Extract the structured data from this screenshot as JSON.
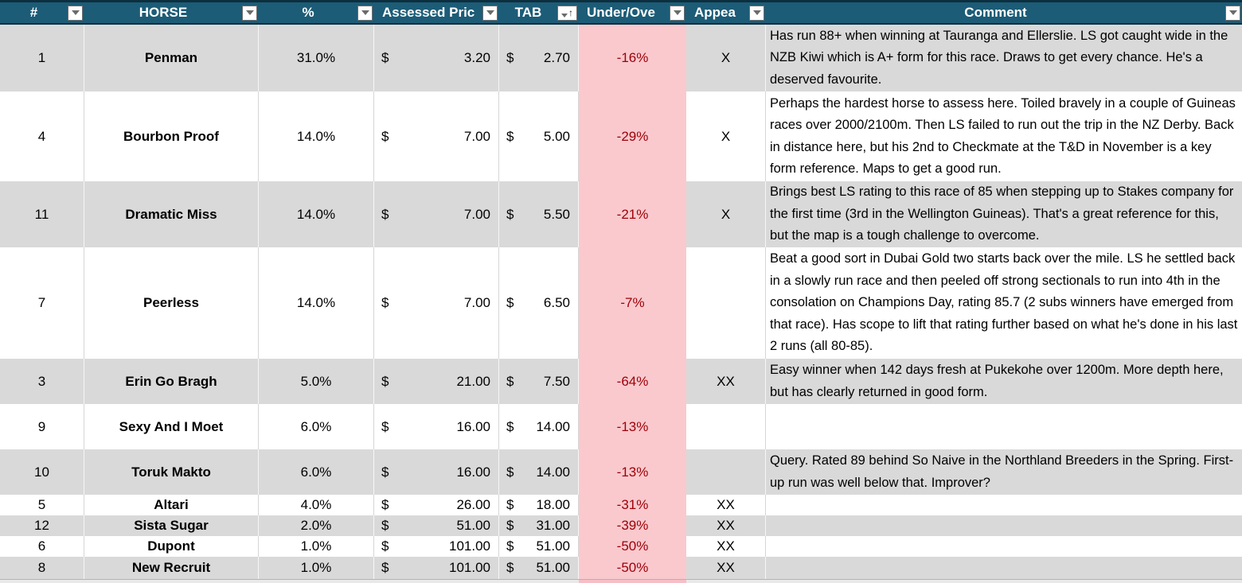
{
  "colors": {
    "header_bg": "#1C5C77",
    "header_border": "#0D2F3F",
    "alt_row_bg": "#D9D9D9",
    "under_over_fill": "#F9C9CE",
    "under_over_text": "#9C0006"
  },
  "icons": {
    "filter_dropdown": "filter-dropdown-triangle",
    "tab_sort": "sort-ascending-arrow",
    "sort_ascending_glyph": "↑"
  },
  "currency_symbol": "$",
  "table": {
    "columns": [
      {
        "key": "num",
        "label": "#"
      },
      {
        "key": "horse",
        "label": "HORSE"
      },
      {
        "key": "pct",
        "label": "%"
      },
      {
        "key": "assessed",
        "label": "Assessed Pric"
      },
      {
        "key": "tab",
        "label": "TAB",
        "sorted": "ascending"
      },
      {
        "key": "underover",
        "label": "Under/Ove"
      },
      {
        "key": "appeal",
        "label": "Appea"
      },
      {
        "key": "comment",
        "label": "Comment"
      }
    ],
    "rows": [
      {
        "num": "1",
        "horse": "Penman",
        "pct": "31.0%",
        "assessed": "3.20",
        "tab": "2.70",
        "underover": "-16%",
        "appeal": "X",
        "comment": "Has run 88+ when winning at Tauranga and Ellerslie. LS got caught wide in the NZB Kiwi which is A+ form for this race. Draws to get every chance. He's a deserved favourite."
      },
      {
        "num": "4",
        "horse": "Bourbon Proof",
        "pct": "14.0%",
        "assessed": "7.00",
        "tab": "5.00",
        "underover": "-29%",
        "appeal": "X",
        "comment": "Perhaps the hardest horse to assess here. Toiled bravely in a couple of Guineas races over 2000/2100m. Then LS failed to run out the trip in the NZ Derby. Back in distance here, but his 2nd to Checkmate at the T&D in November is a key form reference. Maps to get a good run."
      },
      {
        "num": "11",
        "horse": "Dramatic Miss",
        "pct": "14.0%",
        "assessed": "7.00",
        "tab": "5.50",
        "underover": "-21%",
        "appeal": "X",
        "comment": "Brings best LS rating to this race of 85 when stepping up to Stakes company for the first time (3rd in the Wellington Guineas). That's a great reference for this, but the map is a tough challenge to overcome."
      },
      {
        "num": "7",
        "horse": "Peerless",
        "pct": "14.0%",
        "assessed": "7.00",
        "tab": "6.50",
        "underover": "-7%",
        "appeal": "",
        "comment": "Beat a good sort in Dubai Gold two starts back over the mile. LS he settled back in a slowly run race and then peeled off strong sectionals to run into 4th in the consolation on Champions Day, rating 85.7 (2 subs winners have emerged from that race). Has scope to lift that rating further based on what he's done in his last 2 runs (all 80-85)."
      },
      {
        "num": "3",
        "horse": "Erin Go Bragh",
        "pct": "5.0%",
        "assessed": "21.00",
        "tab": "7.50",
        "underover": "-64%",
        "appeal": "XX",
        "comment": "Easy winner when 142 days fresh at Pukekohe over 1200m. More depth here, but has clearly returned in good form."
      },
      {
        "num": "9",
        "horse": "Sexy And I Moet",
        "pct": "6.0%",
        "assessed": "16.00",
        "tab": "14.00",
        "underover": "-13%",
        "appeal": "",
        "comment": ""
      },
      {
        "num": "10",
        "horse": "Toruk Makto",
        "pct": "6.0%",
        "assessed": "16.00",
        "tab": "14.00",
        "underover": "-13%",
        "appeal": "",
        "comment": "Query. Rated 89 behind So Naive in the Northland Breeders in the Spring. First-up run was well below that. Improver?"
      },
      {
        "num": "5",
        "horse": "Altari",
        "pct": "4.0%",
        "assessed": "26.00",
        "tab": "18.00",
        "underover": "-31%",
        "appeal": "XX",
        "comment": ""
      },
      {
        "num": "12",
        "horse": "Sista Sugar",
        "pct": "2.0%",
        "assessed": "51.00",
        "tab": "31.00",
        "underover": "-39%",
        "appeal": "XX",
        "comment": ""
      },
      {
        "num": "6",
        "horse": "Dupont",
        "pct": "1.0%",
        "assessed": "101.00",
        "tab": "51.00",
        "underover": "-50%",
        "appeal": "XX",
        "comment": ""
      },
      {
        "num": "8",
        "horse": "New Recruit",
        "pct": "1.0%",
        "assessed": "101.00",
        "tab": "51.00",
        "underover": "-50%",
        "appeal": "XX",
        "comment": ""
      }
    ]
  }
}
